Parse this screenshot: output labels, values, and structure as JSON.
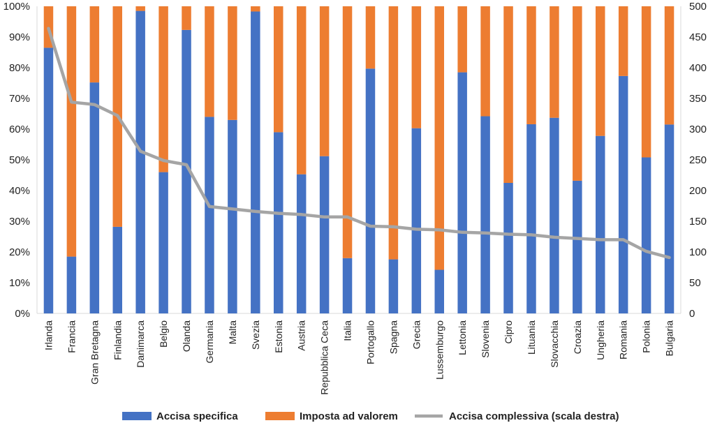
{
  "chart_data": {
    "type": "bar",
    "stacked": true,
    "percent_stacked": true,
    "categories": [
      "Irlanda",
      "Francia",
      "Gran Bretagna",
      "Finlandia",
      "Danimarca",
      "Belgio",
      "Olanda",
      "Germania",
      "Malta",
      "Svezia",
      "Estonia",
      "Austria",
      "Repubblica Ceca",
      "Italia",
      "Portogallo",
      "Spagna",
      "Grecia",
      "Lussemburgo",
      "Lettonia",
      "Slovenia",
      "Cipro",
      "Lituania",
      "Slovacchia",
      "Croazia",
      "Ungheria",
      "Romania",
      "Polonia",
      "Bulgaria"
    ],
    "series": [
      {
        "name": "Accisa specifica",
        "type": "bar",
        "axis": "left",
        "color": "#4472C4",
        "values": [
          86.5,
          18.5,
          75.2,
          28.2,
          98.5,
          46.0,
          92.3,
          64.0,
          63.0,
          98.3,
          59.0,
          45.3,
          51.2,
          18.0,
          79.7,
          17.6,
          60.3,
          14.2,
          78.5,
          64.2,
          42.5,
          61.6,
          63.7,
          43.2,
          57.8,
          77.3,
          50.8,
          61.5
        ]
      },
      {
        "name": "Imposta ad valorem",
        "type": "bar",
        "axis": "left",
        "color": "#ED7D31",
        "values": [
          13.5,
          81.5,
          24.8,
          71.8,
          1.5,
          54.0,
          7.7,
          36.0,
          37.0,
          1.7,
          41.0,
          54.7,
          48.8,
          82.0,
          20.3,
          82.4,
          39.7,
          85.8,
          21.5,
          35.8,
          57.5,
          38.4,
          36.3,
          56.8,
          42.2,
          22.7,
          49.2,
          38.5
        ]
      },
      {
        "name": "Accisa complessiva (scala destra)",
        "type": "line",
        "axis": "right",
        "color": "#A5A5A5",
        "values": [
          464,
          344,
          340,
          322,
          264,
          249,
          242,
          174,
          170,
          166,
          163,
          161,
          157,
          157,
          142,
          141,
          137,
          136,
          132,
          131,
          129,
          128,
          124,
          122,
          120,
          120,
          101,
          91
        ]
      }
    ],
    "yleft": {
      "ticks": [
        "0%",
        "10%",
        "20%",
        "30%",
        "40%",
        "50%",
        "60%",
        "70%",
        "80%",
        "90%",
        "100%"
      ],
      "ylim": [
        0,
        100
      ]
    },
    "yright": {
      "ticks": [
        "0",
        "50",
        "100",
        "150",
        "200",
        "250",
        "300",
        "350",
        "400",
        "450",
        "500"
      ],
      "ylim": [
        0,
        500
      ]
    },
    "gridlines": false,
    "legend": "bottom",
    "title": "",
    "xlabel": "",
    "ylabel": ""
  }
}
